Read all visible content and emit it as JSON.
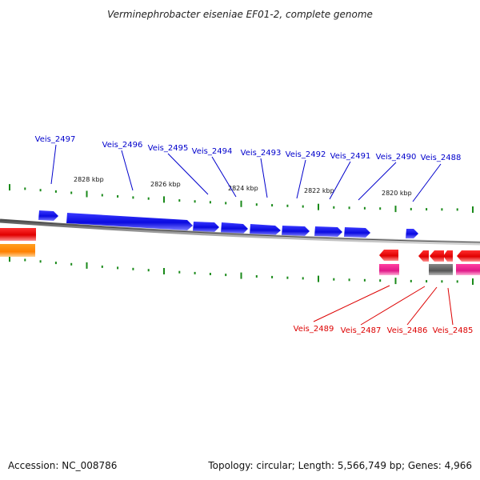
{
  "title": "Verminephrobacter eiseniae EF01-2, complete genome",
  "accession": "Accession: NC_008786",
  "topology": "Topology: circular; Length: 5,566,749 bp; Genes: 4,966",
  "colors": {
    "forward_gene": "#1010e8",
    "reverse_gene": "#e00000",
    "label_forward": "#0000cc",
    "label_reverse": "#dd0000",
    "backbone": "#8a8a8a",
    "tick": "#1a8a1a",
    "pink": "#e0208a",
    "orange": "#ff8a00",
    "gray_block": "#6a6a6a"
  },
  "scale_labels": [
    "2828 kbp",
    "2826 kbp",
    "2824 kbp",
    "2822 kbp",
    "2820 kbp"
  ],
  "forward_labels": [
    "Veis_2497",
    "Veis_2496",
    "Veis_2495",
    "Veis_2494",
    "Veis_2493",
    "Veis_2492",
    "Veis_2491",
    "Veis_2490",
    "Veis_2488"
  ],
  "reverse_labels": [
    "Veis_2489",
    "Veis_2487",
    "Veis_2486",
    "Veis_2485"
  ]
}
